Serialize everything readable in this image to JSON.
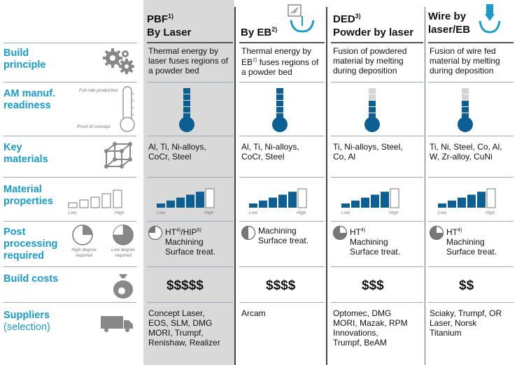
{
  "columns": [
    {
      "line1": "PBF",
      "sup1": "1)",
      "line2": "By Laser"
    },
    {
      "line1": "By EB",
      "sup1": "2)",
      "line2": ""
    },
    {
      "line1": "DED",
      "sup1": "3)",
      "line2": "Powder by laser"
    },
    {
      "line1": "Wire by",
      "sup1": "",
      "line2": "laser/EB"
    }
  ],
  "rows": {
    "build_principle": {
      "label1": "Build",
      "label2": "principle"
    },
    "readiness": {
      "label1": "AM manuf.",
      "label2": "readiness",
      "top_note": "Full rate production",
      "bottom_note": "Proof of concept"
    },
    "materials": {
      "label1": "Key",
      "label2": "materials"
    },
    "properties": {
      "label1": "Material",
      "label2": "properties",
      "low": "Low",
      "high": "High"
    },
    "post": {
      "label1": "Post",
      "label2": "processing",
      "label3": "required",
      "high_req": "High degree required",
      "low_req": "Low degree required"
    },
    "costs": {
      "label1": "Build costs"
    },
    "suppliers": {
      "label1": "Suppliers",
      "label2": "(selection)"
    }
  },
  "build_principle": [
    [
      "Thermal energy by",
      "laser fuses regions of",
      "a powder bed"
    ],
    [
      "Thermal energy by",
      "EB",
      "2)",
      " fuses regions of",
      "a powder bed"
    ],
    [
      "Fusion of powdered",
      "material by melting",
      "during deposition"
    ],
    [
      "Fusion of wire fed",
      "material by melting",
      "during deposition"
    ]
  ],
  "readiness_levels": [
    5,
    5,
    3,
    3
  ],
  "materials": [
    [
      "Al, Ti, Ni-alloys,",
      "CoCr, Steel"
    ],
    [
      "Al, Ti, Ni-alloys,",
      "CoCr, Steel"
    ],
    [
      "Ti, Ni-alloys, Steel,",
      "Co, Al"
    ],
    [
      "Ti, Ni, Steel, Co, Al,",
      "W, Zr-alloy, CuNi"
    ]
  ],
  "property_levels": [
    5,
    4,
    4,
    4
  ],
  "post": [
    {
      "l1a": "HT",
      "s1": "4)",
      "l1b": "/HIP",
      "s2": "5)",
      "l2": "Machining",
      "l3": "Surface treat.",
      "fill": 0.25
    },
    {
      "l1a": "Machining",
      "s1": "",
      "l1b": "",
      "s2": "",
      "l2": "Surface treat.",
      "l3": "",
      "fill": 0.5
    },
    {
      "l1a": "HT",
      "s1": "4)",
      "l1b": "",
      "s2": "",
      "l2": "Machining",
      "l3": "Surface treat.",
      "fill": 0.75
    },
    {
      "l1a": "HT",
      "s1": "4)",
      "l1b": "",
      "s2": "",
      "l2": "Machining",
      "l3": "Surface treat.",
      "fill": 0.75
    }
  ],
  "costs": [
    "$$$$$",
    "$$$$",
    "$$$",
    "$$"
  ],
  "suppliers": [
    [
      "Concept Laser,",
      "EOS, SLM, DMG",
      "MORI, Trumpf,",
      "Renishaw, Realizer"
    ],
    [
      "Arcam"
    ],
    [
      "Optomec, DMG",
      "MORI, Mazak, RPM",
      "Innovations,",
      "Trumpf, BeAM"
    ],
    [
      "Sciaky, Trumpf, OR",
      "Laser, Norsk",
      "Titanium"
    ]
  ],
  "colors": {
    "accent": "#1a9bc9",
    "dark_blue": "#0c5f93",
    "light_gray": "#d9d9d9",
    "icon_gray": "#888888"
  },
  "icons": [
    "gears-icon",
    "thermometer-icon",
    "lattice-cube-icon",
    "bars-icon",
    "pie-icon",
    "money-bag-icon",
    "truck-icon",
    "eb-gun-icon",
    "wire-nozzle-icon"
  ]
}
